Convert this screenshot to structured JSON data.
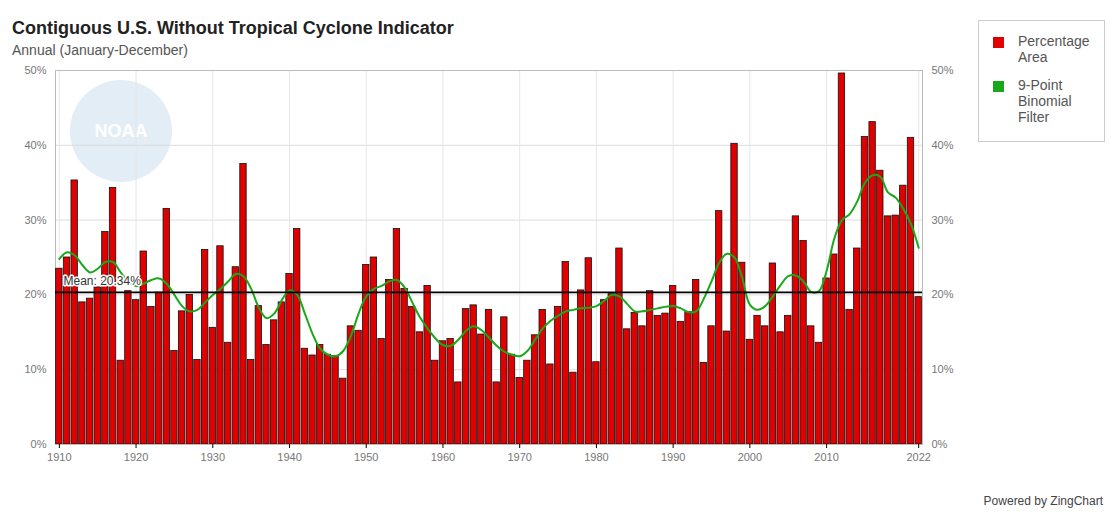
{
  "chart_data": {
    "type": "bar",
    "title": "Contiguous U.S. Without Tropical Cyclone Indicator",
    "subtitle": "Annual (January-December)",
    "watermark": "NOAA",
    "credit": "Powered by ZingChart",
    "x": [
      1910,
      1911,
      1912,
      1913,
      1914,
      1915,
      1916,
      1917,
      1918,
      1919,
      1920,
      1921,
      1922,
      1923,
      1924,
      1925,
      1926,
      1927,
      1928,
      1929,
      1930,
      1931,
      1932,
      1933,
      1934,
      1935,
      1936,
      1937,
      1938,
      1939,
      1940,
      1941,
      1942,
      1943,
      1944,
      1945,
      1946,
      1947,
      1948,
      1949,
      1950,
      1951,
      1952,
      1953,
      1954,
      1955,
      1956,
      1957,
      1958,
      1959,
      1960,
      1961,
      1962,
      1963,
      1964,
      1965,
      1966,
      1967,
      1968,
      1969,
      1970,
      1971,
      1972,
      1973,
      1974,
      1975,
      1976,
      1977,
      1978,
      1979,
      1980,
      1981,
      1982,
      1983,
      1984,
      1985,
      1986,
      1987,
      1988,
      1989,
      1990,
      1991,
      1992,
      1993,
      1994,
      1995,
      1996,
      1997,
      1998,
      1999,
      2000,
      2001,
      2002,
      2003,
      2004,
      2005,
      2006,
      2007,
      2008,
      2009,
      2010,
      2011,
      2012,
      2013,
      2014,
      2015,
      2016,
      2017,
      2018,
      2019,
      2020,
      2021,
      2022
    ],
    "series": [
      {
        "name": "Percentage Area",
        "type": "bar",
        "color": "#e00000",
        "values": [
          23.5,
          25,
          35.3,
          19,
          19.5,
          21,
          28.4,
          34.3,
          11.2,
          20.5,
          19.3,
          25.8,
          18.4,
          20.3,
          31.5,
          12.5,
          17.8,
          20,
          11.3,
          26,
          15.6,
          26.5,
          13.6,
          23.7,
          37.5,
          11.3,
          18.5,
          13.3,
          16.6,
          19,
          22.8,
          28.8,
          12.8,
          11.9,
          13.3,
          12,
          11.8,
          8.8,
          15.8,
          15.2,
          24,
          25,
          14.1,
          22,
          28.8,
          20.8,
          18.4,
          15,
          21.2,
          11.2,
          13.8,
          14.1,
          8.3,
          18.1,
          18.6,
          14.7,
          18,
          8.3,
          17,
          12,
          8.9,
          11.2,
          14.6,
          18,
          10.7,
          18.4,
          24.4,
          9.6,
          20.6,
          24.9,
          11,
          19.3,
          20.1,
          26.2,
          15.4,
          17.6,
          15.8,
          20.5,
          17.2,
          17.5,
          21.2,
          16.4,
          17.7,
          22,
          10.9,
          15.8,
          31.2,
          15.1,
          40.2,
          24.3,
          14,
          17.2,
          15.8,
          24.2,
          15,
          17.2,
          30.5,
          27.2,
          15.8,
          13.6,
          22.2,
          25.4,
          49.6,
          18,
          26.2,
          41.1,
          43.1,
          36.6,
          30.5,
          30.6,
          34.6,
          41,
          19.7
        ]
      },
      {
        "name": "9-Point Binomial Filter",
        "type": "line",
        "color": "#1aa81a",
        "values": [
          24.8,
          25.7,
          25.3,
          24,
          23,
          23.5,
          24.4,
          24.4,
          23,
          21.8,
          21.2,
          21.5,
          22,
          22.2,
          21.5,
          20,
          18.5,
          17.8,
          18,
          19,
          20,
          20.8,
          21.8,
          22.8,
          22.5,
          20.8,
          18.3,
          16.9,
          17.5,
          19.3,
          20.6,
          20,
          17.5,
          14.8,
          12.8,
          12,
          11.8,
          12.5,
          14.5,
          17.5,
          19.8,
          20.8,
          21.2,
          21.8,
          22,
          21,
          19,
          17,
          15.5,
          14.2,
          13.3,
          13.2,
          14,
          15.2,
          15.8,
          15.3,
          14.3,
          13.2,
          12.4,
          12,
          11.8,
          12.5,
          14,
          15.5,
          16.5,
          17.2,
          17.8,
          18,
          18.2,
          18.3,
          18.5,
          19.2,
          20,
          19.8,
          18.8,
          17.8,
          17.8,
          18,
          18.2,
          18.4,
          18.5,
          18.2,
          17.7,
          17.8,
          19.5,
          21.8,
          24.3,
          25.5,
          25,
          22.3,
          18.7,
          18,
          18.5,
          19.8,
          21.3,
          22.5,
          22.6,
          21.8,
          20.4,
          20.5,
          23.2,
          27.5,
          30,
          30.8,
          32.5,
          35,
          36,
          35.8,
          33.7,
          33,
          31.5,
          29.5,
          26.3
        ]
      }
    ],
    "mean": {
      "value": 20.34,
      "label": "Mean: 20.34%"
    },
    "xlim": [
      1909.5,
      2022.5
    ],
    "xticks": [
      1910,
      1920,
      1930,
      1940,
      1950,
      1960,
      1970,
      1980,
      1990,
      2000,
      2010,
      2022
    ],
    "ylim": [
      0,
      50
    ],
    "yticks": [
      {
        "value": 0,
        "label": "0%"
      },
      {
        "value": 10,
        "label": "10%"
      },
      {
        "value": 20,
        "label": "20%"
      },
      {
        "value": 30,
        "label": "30%"
      },
      {
        "value": 40,
        "label": "40%"
      },
      {
        "value": 50,
        "label": "50%"
      }
    ],
    "grid": true,
    "legend": "right"
  }
}
